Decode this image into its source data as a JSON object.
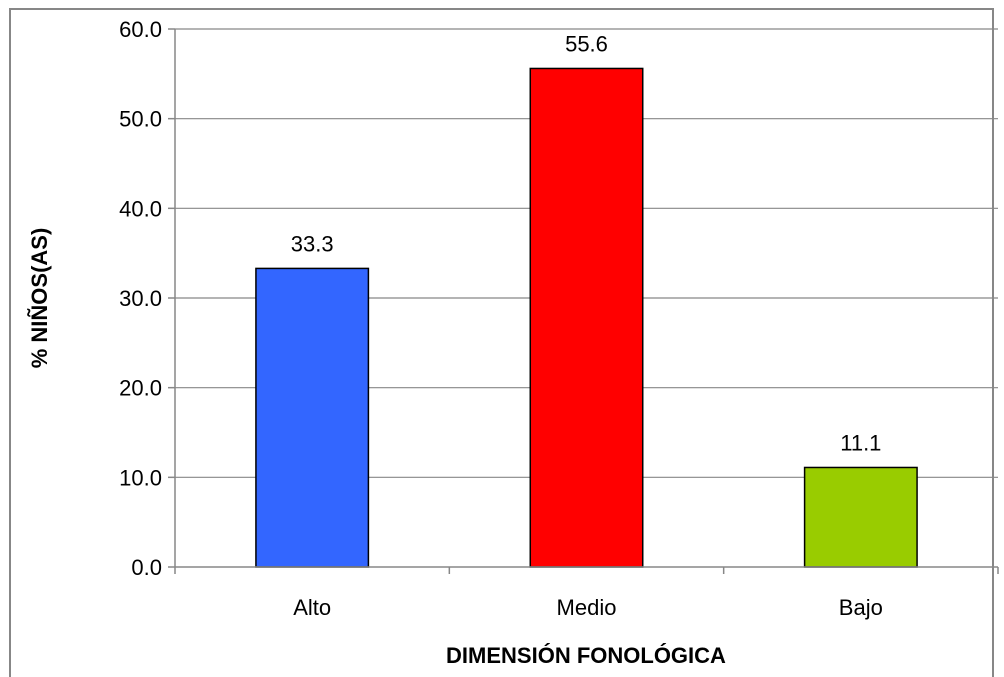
{
  "chart_data": {
    "type": "bar",
    "categories": [
      "Alto",
      "Medio",
      "Bajo"
    ],
    "values": [
      33.3,
      55.6,
      11.1
    ],
    "value_labels": [
      "33.3",
      "55.6",
      "11.1"
    ],
    "colors": [
      "#3366ff",
      "#ff0000",
      "#99cc00"
    ],
    "xlabel": "DIMENSIÓN FONOLÓGICA",
    "ylabel": "% NIÑOS(AS)",
    "ylim": [
      0,
      60
    ],
    "yticks": [
      "0.0",
      "10.0",
      "20.0",
      "30.0",
      "40.0",
      "50.0",
      "60.0"
    ],
    "grid": true
  }
}
